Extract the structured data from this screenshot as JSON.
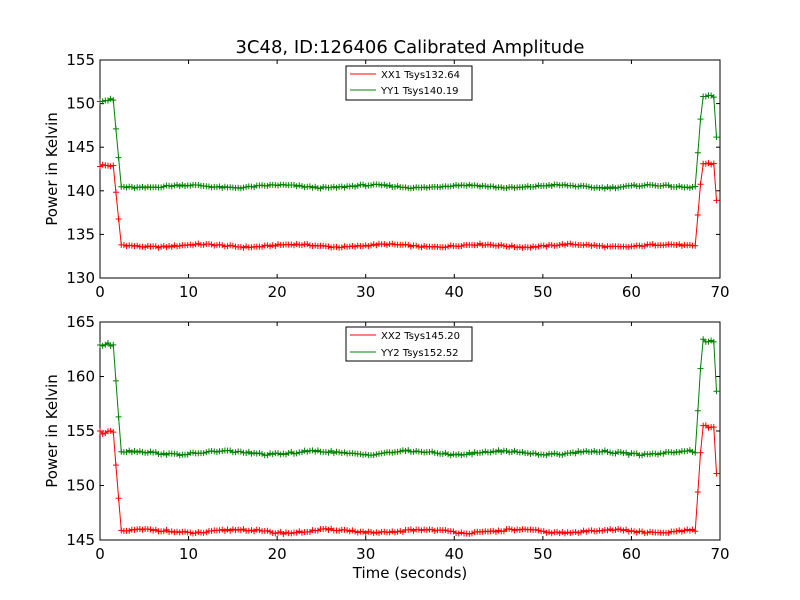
{
  "figure": {
    "title": "3C48, ID:126406 Calibrated Amplitude",
    "xlabel": "Time (seconds)"
  },
  "colors": {
    "xx": "#ff0000",
    "yy": "#008000"
  },
  "chart_data": [
    {
      "type": "line",
      "title": "3C48, ID:126406 Calibrated Amplitude",
      "xlabel": "",
      "ylabel": "Power in Kelvin",
      "xlim": [
        0,
        70
      ],
      "ylim": [
        130,
        155
      ],
      "xticks": [
        0,
        10,
        20,
        30,
        40,
        50,
        60,
        70
      ],
      "yticks": [
        130,
        135,
        140,
        145,
        150,
        155
      ],
      "grid": false,
      "legend_position": "top-center",
      "marker": "+",
      "series": [
        {
          "name": "XX1 Tsys132.64",
          "color": "#ff0000",
          "profile": {
            "x_start": 0,
            "x_step": 0.3,
            "x_end": 69.6,
            "on_source_early": 142.9,
            "on_source_late": 143.1,
            "off_source": 133.7,
            "drop_x": [
              1.5,
              2.4
            ],
            "rise_x": [
              67.2,
              68.0
            ],
            "transitions": {
              "1.8": 138.5,
              "67.2": 134.3,
              "69.6": 138.5
            }
          }
        },
        {
          "name": "YY1 Tsys140.19",
          "color": "#008000",
          "profile": {
            "x_start": 0,
            "x_step": 0.3,
            "x_end": 69.6,
            "on_source_early": 150.4,
            "on_source_late": 150.8,
            "off_source": 140.5,
            "drop_x": [
              1.5,
              2.4
            ],
            "rise_x": [
              67.2,
              68.0
            ],
            "transitions": {
              "1.8": 145.6,
              "67.2": 140.6,
              "69.6": 146.0
            }
          }
        }
      ]
    },
    {
      "type": "line",
      "title": "",
      "xlabel": "Time (seconds)",
      "ylabel": "Power in Kelvin",
      "xlim": [
        0,
        70
      ],
      "ylim": [
        145,
        165
      ],
      "xticks": [
        0,
        10,
        20,
        30,
        40,
        50,
        60,
        70
      ],
      "yticks": [
        145,
        150,
        155,
        160,
        165
      ],
      "grid": false,
      "legend_position": "top-center",
      "marker": "+",
      "series": [
        {
          "name": "XX2 Tsys145.20",
          "color": "#ff0000",
          "profile": {
            "x_start": 0,
            "x_step": 0.3,
            "x_end": 69.6,
            "on_source_early": 154.9,
            "on_source_late": 155.4,
            "off_source": 145.8,
            "drop_x": [
              1.5,
              2.4
            ],
            "rise_x": [
              67.2,
              68.0
            ],
            "transitions": {
              "1.8": 150.7,
              "67.2": 146.4,
              "69.6": 150.8
            }
          }
        },
        {
          "name": "YY2 Tsys152.52",
          "color": "#008000",
          "profile": {
            "x_start": 0,
            "x_step": 0.3,
            "x_end": 69.6,
            "on_source_early": 162.9,
            "on_source_late": 163.3,
            "off_source": 153.0,
            "drop_x": [
              1.5,
              2.4
            ],
            "rise_x": [
              67.2,
              68.0
            ],
            "transitions": {
              "1.8": 158.0,
              "67.2": 153.3,
              "69.6": 158.4
            }
          }
        }
      ]
    }
  ]
}
